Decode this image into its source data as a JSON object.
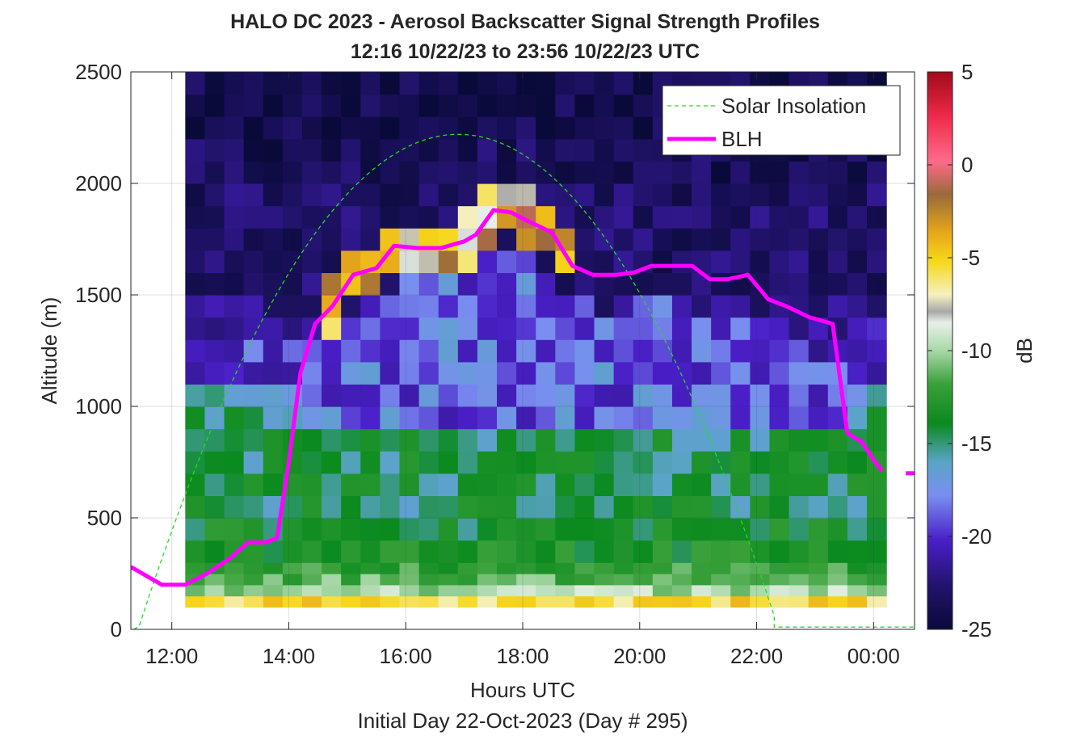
{
  "chart_data": {
    "type": "heatmap",
    "title": "HALO DC 2023 - Aerosol Backscatter Signal Strength Profiles",
    "subtitle": "12:16 10/22/23 to 23:56 10/22/23  UTC",
    "xlabel": "Hours UTC",
    "xlabel2": "Initial Day 22-Oct-2023 (Day # 295)",
    "ylabel": "Altitude (m)",
    "colorbar_label": "dB",
    "xlim": [
      11.3,
      24.7
    ],
    "ylim": [
      0,
      2500
    ],
    "x_ticks": [
      12,
      14,
      16,
      18,
      20,
      22,
      24
    ],
    "x_tick_labels": [
      "12:00",
      "14:00",
      "16:00",
      "18:00",
      "20:00",
      "22:00",
      "00:00"
    ],
    "y_ticks": [
      0,
      500,
      1000,
      1500,
      2000,
      2500
    ],
    "y_tick_labels": [
      "0",
      "500",
      "1000",
      "1500",
      "2000",
      "2500"
    ],
    "clim": [
      -25,
      5
    ],
    "colorbar_ticks": [
      5,
      0,
      -5,
      -10,
      -15,
      -20,
      -25
    ],
    "colorbar_tick_labels": [
      "5",
      "0",
      "-5",
      "-10",
      "-15",
      "-20",
      "-25"
    ],
    "grid": true,
    "legend_position": "top-right",
    "legend": [
      "Solar Insolation",
      "BLH"
    ],
    "colors": {
      "blh": "#ff00ff",
      "solar": "#22dd22"
    },
    "heatmap": {
      "x_start": 12.23,
      "x_end": 23.93,
      "column_width_hours": 0.333,
      "y_start": 100,
      "bin_height_m": 50,
      "row_layers_m": [
        100,
        150,
        200,
        250,
        300,
        400,
        500,
        600,
        700,
        800,
        900,
        1000,
        1100,
        1200,
        1300,
        1400,
        1500,
        1600,
        1700,
        1800,
        1900,
        2000,
        2100,
        2200,
        2300,
        2400,
        2500
      ],
      "background_profile_db": [
        -9,
        -12,
        -13.5,
        -14.5,
        -15.5,
        -16,
        -16.5,
        -16.5,
        -16.5,
        -16.5,
        -17,
        -18,
        -20,
        -20.5,
        -21,
        -22,
        -23,
        -23,
        -23,
        -23,
        -23,
        -23.5,
        -23.5,
        -24,
        -24,
        -24,
        -24
      ]
    },
    "series": [
      {
        "name": "BLH",
        "x": [
          11.3,
          11.83,
          12.23,
          12.6,
          13.0,
          13.3,
          13.6,
          13.8,
          14.0,
          14.2,
          14.45,
          14.75,
          15.1,
          15.5,
          15.8,
          16.2,
          16.6,
          17.0,
          17.2,
          17.5,
          17.8,
          18.1,
          18.5,
          18.85,
          19.2,
          19.6,
          19.9,
          20.2,
          20.5,
          20.9,
          21.2,
          21.5,
          21.85,
          22.2,
          22.5,
          22.9,
          23.3,
          23.55,
          23.8,
          24.0,
          24.15
        ],
        "y": [
          280,
          200,
          200,
          250,
          320,
          390,
          390,
          410,
          750,
          1150,
          1370,
          1450,
          1590,
          1620,
          1720,
          1710,
          1710,
          1740,
          1770,
          1880,
          1870,
          1830,
          1780,
          1630,
          1590,
          1590,
          1600,
          1630,
          1630,
          1630,
          1570,
          1570,
          1590,
          1480,
          1450,
          1400,
          1370,
          880,
          840,
          760,
          710
        ]
      },
      {
        "name": "BLH",
        "x": [
          24.55,
          24.7
        ],
        "y": [
          700,
          700
        ]
      },
      {
        "name": "Solar Insolation",
        "type": "line",
        "x_range": [
          11.35,
          22.3
        ],
        "peak": [
          16.9,
          2220
        ],
        "tail_x": [
          22.3,
          24.7
        ],
        "tail_y": [
          10,
          10
        ]
      }
    ]
  }
}
